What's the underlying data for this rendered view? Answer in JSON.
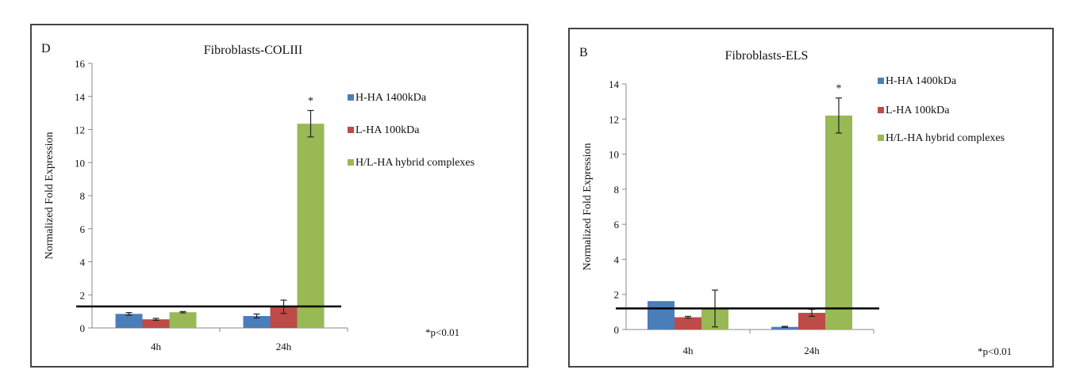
{
  "chart_data": [
    {
      "type": "bar",
      "panel_label": "D",
      "title": "Fibroblasts-COLIII",
      "ylabel": "Normalized Fold Expression",
      "xlabel": "",
      "categories": [
        "4h",
        "24h"
      ],
      "ylim": [
        0,
        16
      ],
      "yticks": [
        0,
        2,
        4,
        6,
        8,
        10,
        12,
        14,
        16
      ],
      "series": [
        {
          "name": "H-HA 1400kDa",
          "color": "#4a7ebb",
          "values": [
            0.85,
            0.72
          ],
          "errors": [
            0.08,
            0.12
          ]
        },
        {
          "name": "L-HA 100kDa",
          "color": "#be4b48",
          "values": [
            0.52,
            1.28
          ],
          "errors": [
            0.06,
            0.4
          ]
        },
        {
          "name": "H/L-HA hybrid complexes",
          "color": "#98b954",
          "values": [
            0.95,
            12.35
          ],
          "errors": [
            0.04,
            0.8
          ]
        }
      ],
      "reference_line": 1.3,
      "significance_marker": "*",
      "footnote": "*p<0.01",
      "legend_position": "right",
      "grid": false
    },
    {
      "type": "bar",
      "panel_label": "B",
      "title": "Fibroblasts-ELS",
      "ylabel": "Normalized Fold Expression",
      "xlabel": "",
      "categories": [
        "4h",
        "24h"
      ],
      "ylim": [
        0,
        14
      ],
      "yticks": [
        0,
        2,
        4,
        6,
        8,
        10,
        12,
        14
      ],
      "series": [
        {
          "name": "H-HA 1400kDa",
          "color": "#4a7ebb",
          "values": [
            1.62,
            0.15
          ],
          "errors": [
            0.0,
            0.03
          ]
        },
        {
          "name": "L-HA 100kDa",
          "color": "#be4b48",
          "values": [
            0.7,
            0.95
          ],
          "errors": [
            0.05,
            0.2
          ]
        },
        {
          "name": "H/L-HA hybrid complexes",
          "color": "#98b954",
          "values": [
            1.2,
            12.2
          ],
          "errors": [
            1.05,
            1.0
          ]
        }
      ],
      "reference_line": 1.2,
      "significance_marker": "*",
      "footnote": "*p<0.01",
      "legend_position": "right",
      "grid": false
    }
  ]
}
